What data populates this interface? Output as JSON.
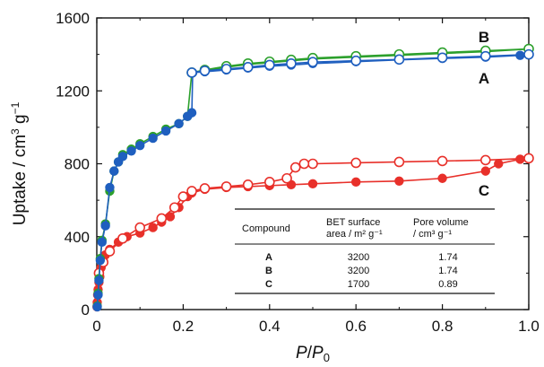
{
  "chart_data": {
    "type": "scatter",
    "xlabel": "P/P0",
    "ylabel": "Uptake / cm3 g-1",
    "xlim": [
      0,
      1.0
    ],
    "ylim": [
      0,
      1600
    ],
    "xticks": [
      "0",
      "0.2",
      "0.4",
      "0.6",
      "0.8",
      "1.0"
    ],
    "yticks": [
      "0",
      "400",
      "800",
      "1200",
      "1600"
    ],
    "grid": false,
    "series": [
      {
        "name": "B",
        "color": "#2ca02c",
        "adsorption": [
          [
            0.001,
            20
          ],
          [
            0.003,
            90
          ],
          [
            0.005,
            170
          ],
          [
            0.008,
            280
          ],
          [
            0.012,
            380
          ],
          [
            0.02,
            470
          ],
          [
            0.03,
            650
          ],
          [
            0.04,
            760
          ],
          [
            0.05,
            810
          ],
          [
            0.06,
            850
          ],
          [
            0.08,
            880
          ],
          [
            0.1,
            910
          ],
          [
            0.13,
            950
          ],
          [
            0.16,
            990
          ],
          [
            0.19,
            1020
          ],
          [
            0.21,
            1060
          ],
          [
            0.22,
            1300
          ],
          [
            0.25,
            1310
          ],
          [
            0.3,
            1330
          ],
          [
            0.35,
            1345
          ],
          [
            0.4,
            1355
          ],
          [
            0.45,
            1365
          ],
          [
            0.5,
            1375
          ],
          [
            0.6,
            1385
          ],
          [
            0.7,
            1395
          ],
          [
            0.8,
            1405
          ],
          [
            0.9,
            1415
          ],
          [
            1.0,
            1430
          ]
        ],
        "desorption": [
          [
            1.0,
            1430
          ],
          [
            0.9,
            1420
          ],
          [
            0.8,
            1410
          ],
          [
            0.7,
            1400
          ],
          [
            0.6,
            1390
          ],
          [
            0.5,
            1380
          ],
          [
            0.45,
            1370
          ],
          [
            0.4,
            1360
          ],
          [
            0.35,
            1350
          ],
          [
            0.3,
            1335
          ],
          [
            0.25,
            1315
          ],
          [
            0.22,
            1300
          ]
        ]
      },
      {
        "name": "A",
        "color": "#1f5fbf",
        "adsorption": [
          [
            0.001,
            15
          ],
          [
            0.003,
            80
          ],
          [
            0.005,
            160
          ],
          [
            0.008,
            270
          ],
          [
            0.012,
            370
          ],
          [
            0.02,
            460
          ],
          [
            0.03,
            670
          ],
          [
            0.04,
            760
          ],
          [
            0.05,
            810
          ],
          [
            0.06,
            840
          ],
          [
            0.08,
            870
          ],
          [
            0.1,
            900
          ],
          [
            0.13,
            940
          ],
          [
            0.16,
            980
          ],
          [
            0.19,
            1020
          ],
          [
            0.21,
            1060
          ],
          [
            0.22,
            1080
          ],
          [
            0.222,
            1300
          ],
          [
            0.25,
            1305
          ],
          [
            0.3,
            1315
          ],
          [
            0.35,
            1325
          ],
          [
            0.4,
            1335
          ],
          [
            0.45,
            1342
          ],
          [
            0.5,
            1350
          ],
          [
            0.6,
            1360
          ],
          [
            0.7,
            1370
          ],
          [
            0.8,
            1378
          ],
          [
            0.9,
            1385
          ],
          [
            0.98,
            1395
          ]
        ],
        "desorption": [
          [
            1.0,
            1400
          ],
          [
            0.9,
            1390
          ],
          [
            0.8,
            1382
          ],
          [
            0.7,
            1372
          ],
          [
            0.6,
            1365
          ],
          [
            0.5,
            1358
          ],
          [
            0.45,
            1350
          ],
          [
            0.4,
            1342
          ],
          [
            0.35,
            1330
          ],
          [
            0.3,
            1320
          ],
          [
            0.25,
            1310
          ],
          [
            0.22,
            1300
          ]
        ]
      },
      {
        "name": "C",
        "color": "#e8302a",
        "adsorption": [
          [
            0.0005,
            15
          ],
          [
            0.001,
            40
          ],
          [
            0.002,
            80
          ],
          [
            0.003,
            110
          ],
          [
            0.005,
            150
          ],
          [
            0.007,
            180
          ],
          [
            0.01,
            230
          ],
          [
            0.015,
            270
          ],
          [
            0.02,
            300
          ],
          [
            0.03,
            330
          ],
          [
            0.05,
            370
          ],
          [
            0.07,
            400
          ],
          [
            0.1,
            420
          ],
          [
            0.13,
            450
          ],
          [
            0.15,
            480
          ],
          [
            0.17,
            510
          ],
          [
            0.19,
            560
          ],
          [
            0.21,
            620
          ],
          [
            0.22,
            640
          ],
          [
            0.25,
            660
          ],
          [
            0.3,
            670
          ],
          [
            0.35,
            675
          ],
          [
            0.4,
            680
          ],
          [
            0.45,
            685
          ],
          [
            0.5,
            690
          ],
          [
            0.6,
            700
          ],
          [
            0.7,
            705
          ],
          [
            0.8,
            720
          ],
          [
            0.9,
            760
          ],
          [
            0.93,
            800
          ],
          [
            0.98,
            825
          ]
        ],
        "desorption": [
          [
            1.0,
            830
          ],
          [
            0.9,
            820
          ],
          [
            0.8,
            815
          ],
          [
            0.7,
            810
          ],
          [
            0.6,
            805
          ],
          [
            0.5,
            800
          ],
          [
            0.48,
            800
          ],
          [
            0.46,
            780
          ],
          [
            0.44,
            720
          ],
          [
            0.4,
            700
          ],
          [
            0.35,
            685
          ],
          [
            0.3,
            675
          ],
          [
            0.25,
            665
          ],
          [
            0.22,
            650
          ],
          [
            0.2,
            620
          ],
          [
            0.18,
            560
          ],
          [
            0.15,
            500
          ],
          [
            0.1,
            450
          ],
          [
            0.06,
            390
          ],
          [
            0.03,
            320
          ],
          [
            0.015,
            260
          ],
          [
            0.005,
            200
          ]
        ]
      }
    ],
    "annotations": [
      "B",
      "A",
      "C"
    ],
    "table": {
      "headers": [
        "Compound",
        "BET surface area / m2 g-1",
        "Pore volume / cm3 g-1"
      ],
      "rows": [
        [
          "A",
          "3200",
          "1.74"
        ],
        [
          "B",
          "3200",
          "1.74"
        ],
        [
          "C",
          "1700",
          "0.89"
        ]
      ]
    }
  }
}
